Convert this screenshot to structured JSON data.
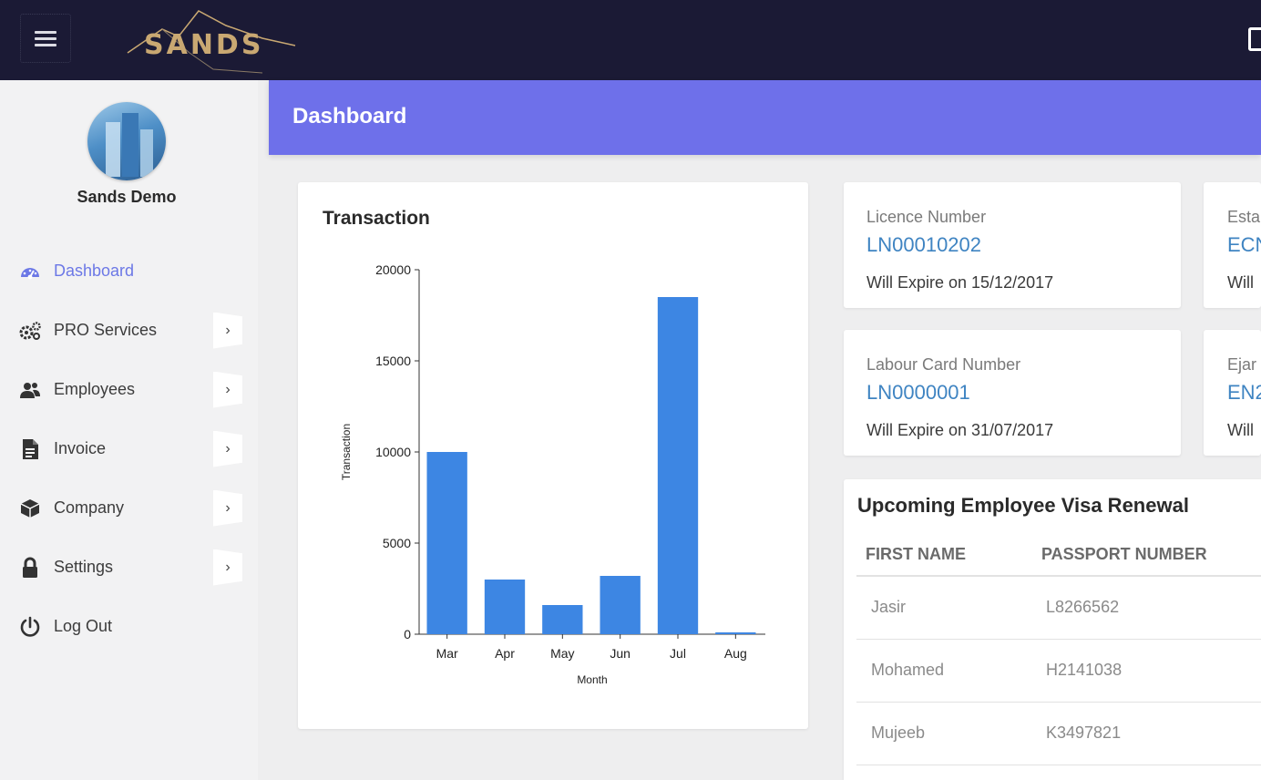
{
  "app": {
    "logo_text": "SANDS"
  },
  "topbar": {
    "menu_icon": "hamburger-icon",
    "fullscreen_icon": "fullscreen-icon"
  },
  "sidebar": {
    "user_name": "Sands Demo",
    "items": [
      {
        "label": "Dashboard",
        "icon": "dashboard-icon",
        "active": true,
        "has_arrow": false
      },
      {
        "label": "PRO Services",
        "icon": "gears-icon",
        "active": false,
        "has_arrow": true
      },
      {
        "label": "Employees",
        "icon": "users-icon",
        "active": false,
        "has_arrow": true
      },
      {
        "label": "Invoice",
        "icon": "file-icon",
        "active": false,
        "has_arrow": true
      },
      {
        "label": "Company",
        "icon": "cube-icon",
        "active": false,
        "has_arrow": true
      },
      {
        "label": "Settings",
        "icon": "lock-icon",
        "active": false,
        "has_arrow": true
      },
      {
        "label": "Log Out",
        "icon": "power-icon",
        "active": false,
        "has_arrow": false
      }
    ]
  },
  "header": {
    "title": "Dashboard",
    "color": "#6e70ea"
  },
  "chart_card": {
    "title": "Transaction"
  },
  "chart_data": {
    "type": "bar",
    "title": "Transaction",
    "categories": [
      "Mar",
      "Apr",
      "May",
      "Jun",
      "Jul",
      "Aug"
    ],
    "values": [
      10000,
      3000,
      1600,
      3200,
      18500,
      100
    ],
    "xlabel": "Month",
    "ylabel": "Transaction",
    "ylim": [
      0,
      20000
    ],
    "yticks": [
      0,
      5000,
      10000,
      15000,
      20000
    ],
    "bar_color": "#3d86e3",
    "grid": false
  },
  "cards": {
    "licence": {
      "label": "Licence Number",
      "value": "LN00010202",
      "expiry": "Will Expire on 15/12/2017"
    },
    "estab": {
      "label": "Esta",
      "value": "ECN",
      "expiry": "Will"
    },
    "labour": {
      "label": "Labour Card Number",
      "value": "LN0000001",
      "expiry": "Will Expire on 31/07/2017"
    },
    "ejari": {
      "label": "Ejar",
      "value": "EN2",
      "expiry": "Will"
    }
  },
  "visa": {
    "title": "Upcoming Employee Visa Renewal",
    "columns": [
      "FIRST NAME",
      "PASSPORT NUMBER"
    ],
    "rows": [
      [
        "Jasir",
        "L8266562"
      ],
      [
        "Mohamed",
        "H2141038"
      ],
      [
        "Mujeeb",
        "K3497821"
      ]
    ]
  }
}
